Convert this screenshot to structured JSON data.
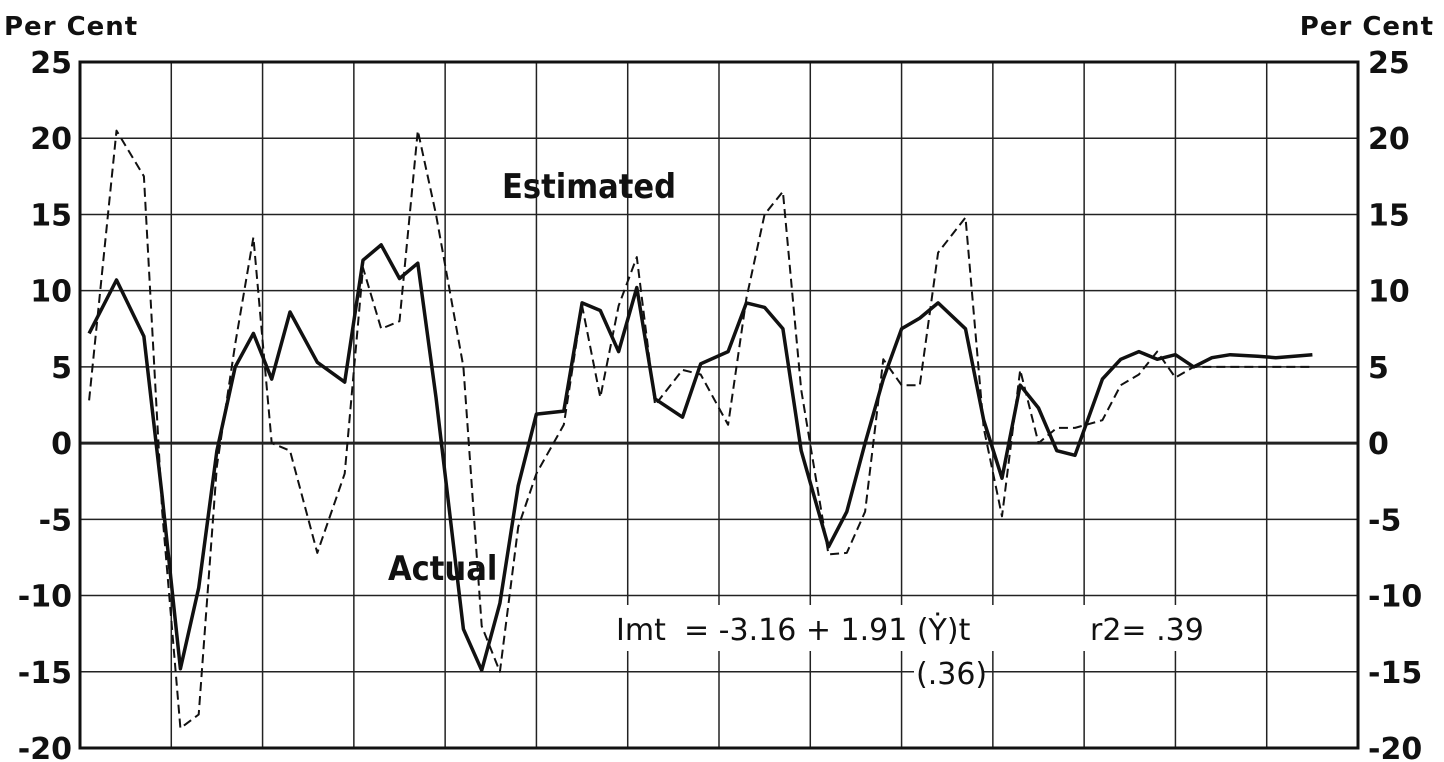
{
  "axis_unit_left": "Per Cent",
  "axis_unit_right": "Per Cent",
  "annotations": {
    "estimated": "Estimated",
    "actual": "Actual",
    "equation_lhs": "Imt",
    "equation_rhs": "= -3.16 + 1.91 (Ẏ)t",
    "r2": "r2= .39",
    "std_error": "(.36)"
  },
  "chart_data": {
    "type": "line",
    "title": "",
    "xlabel": "",
    "ylabel": "Per Cent",
    "ylim": [
      -20,
      25
    ],
    "yticks": [
      25,
      20,
      15,
      10,
      5,
      0,
      -5,
      -10,
      -15,
      -20
    ],
    "x_categories_count": 14,
    "grid": true,
    "series": [
      {
        "name": "Actual",
        "style": "solid",
        "x": [
          0.1,
          0.4,
          0.7,
          0.9,
          1.1,
          1.3,
          1.5,
          1.7,
          1.9,
          2.1,
          2.3,
          2.6,
          2.9,
          3.1,
          3.3,
          3.5,
          3.7,
          3.9,
          4.2,
          4.4,
          4.6,
          4.8,
          5.0,
          5.3,
          5.5,
          5.7,
          5.9,
          6.1,
          6.3,
          6.6,
          6.8,
          7.1,
          7.3,
          7.5,
          7.7,
          7.9,
          8.2,
          8.4,
          8.6,
          8.8,
          9.0,
          9.2,
          9.4,
          9.7,
          9.9,
          10.1,
          10.3,
          10.5,
          10.7,
          10.9,
          11.2,
          11.4,
          11.6,
          11.8,
          12.0,
          12.2,
          12.4,
          12.6,
          12.9,
          13.1,
          13.3,
          13.5
        ],
        "y": [
          7.2,
          10.7,
          7.0,
          -3.5,
          -14.8,
          -9.5,
          -0.5,
          5.0,
          7.2,
          4.2,
          8.6,
          5.3,
          4.0,
          12.0,
          13.0,
          10.8,
          11.8,
          3.0,
          -12.2,
          -14.9,
          -10.5,
          -2.8,
          1.9,
          2.1,
          9.2,
          8.7,
          6.0,
          10.2,
          2.9,
          1.7,
          5.2,
          6.0,
          9.2,
          8.9,
          7.5,
          -0.5,
          -6.8,
          -4.5,
          0.0,
          4.2,
          7.5,
          8.2,
          9.2,
          7.5,
          1.5,
          -2.3,
          3.8,
          2.3,
          -0.5,
          -0.8,
          4.2,
          5.5,
          6.0,
          5.5,
          5.8,
          5.0,
          5.6,
          5.8,
          5.7,
          5.6,
          5.7,
          5.8
        ]
      },
      {
        "name": "Estimated",
        "style": "dashed",
        "x": [
          0.1,
          0.4,
          0.7,
          0.9,
          1.1,
          1.3,
          1.5,
          1.7,
          1.9,
          2.1,
          2.3,
          2.6,
          2.9,
          3.1,
          3.3,
          3.5,
          3.7,
          3.9,
          4.2,
          4.4,
          4.6,
          4.8,
          5.0,
          5.3,
          5.5,
          5.7,
          5.9,
          6.1,
          6.3,
          6.6,
          6.8,
          7.1,
          7.3,
          7.5,
          7.7,
          7.9,
          8.2,
          8.4,
          8.6,
          8.8,
          9.0,
          9.2,
          9.4,
          9.7,
          9.9,
          10.1,
          10.3,
          10.5,
          10.7,
          10.9,
          11.2,
          11.4,
          11.6,
          11.8,
          12.0,
          12.2,
          12.4,
          12.6,
          12.9,
          13.1,
          13.3,
          13.5
        ],
        "y": [
          2.8,
          20.5,
          17.5,
          -4.5,
          -18.7,
          -17.8,
          -1.5,
          6.5,
          13.5,
          0.0,
          -0.5,
          -7.2,
          -2.0,
          11.5,
          7.5,
          8.0,
          20.5,
          15.0,
          5.0,
          -12.0,
          -15.0,
          -5.5,
          -2.0,
          1.2,
          9.0,
          3.0,
          9.0,
          12.2,
          2.5,
          4.8,
          4.5,
          1.2,
          9.5,
          15.0,
          16.5,
          3.5,
          -7.3,
          -7.2,
          -4.5,
          5.5,
          3.8,
          3.8,
          12.5,
          14.8,
          1.0,
          -4.8,
          4.8,
          0.0,
          1.0,
          1.0,
          1.5,
          3.8,
          4.5,
          6.0,
          4.3,
          5.0,
          5.0,
          5.0,
          5.0,
          5.0,
          5.0,
          5.0
        ]
      }
    ]
  }
}
